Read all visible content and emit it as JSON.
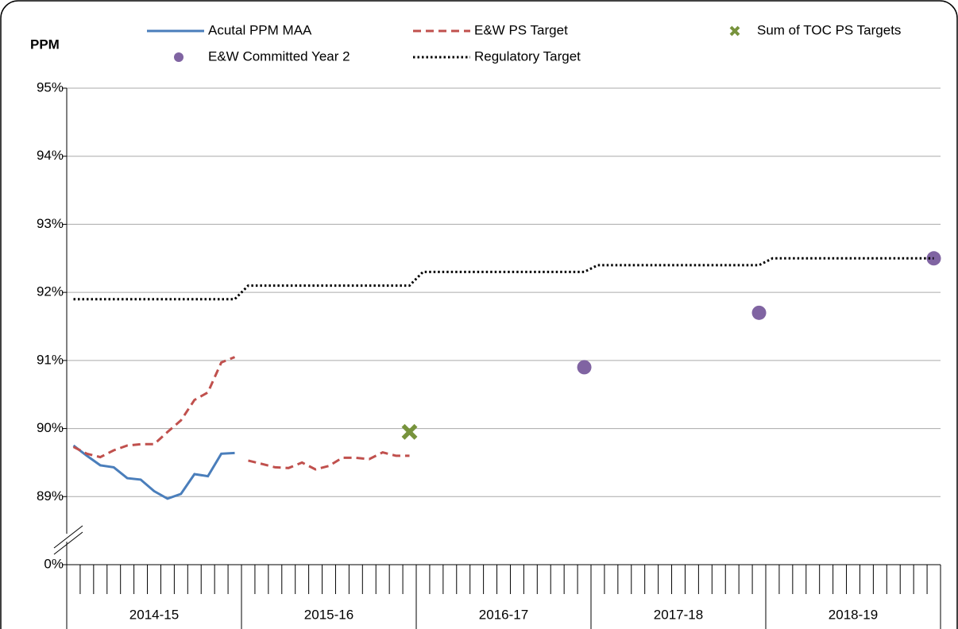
{
  "chart_data": {
    "type": "line",
    "y_label": "PPM",
    "categories": [
      null,
      null,
      null,
      null,
      null,
      null,
      null,
      null,
      null,
      null,
      null,
      null,
      null,
      null,
      null,
      null,
      null,
      null,
      null,
      null,
      null,
      null,
      null,
      null,
      null,
      null,
      null,
      null,
      null,
      null,
      null,
      null,
      null,
      null,
      null,
      null,
      null,
      null,
      null,
      null,
      null,
      null,
      null,
      null,
      null,
      null,
      null,
      null,
      null,
      null,
      null,
      null,
      null,
      null,
      null,
      null,
      null,
      null,
      null,
      null,
      null,
      null,
      null,
      null,
      null
    ],
    "x_groups": [
      "2014-15",
      "2015-16",
      "2016-17",
      "2017-18",
      "2018-19"
    ],
    "ylim": [
      0,
      95
    ],
    "ybreak": [
      0,
      88
    ],
    "yticks": [
      {
        "value": 0,
        "label": "0%"
      },
      {
        "value": 89,
        "label": "89%"
      },
      {
        "value": 90,
        "label": "90%"
      },
      {
        "value": 91,
        "label": "91%"
      },
      {
        "value": 92,
        "label": "92%"
      },
      {
        "value": 93,
        "label": "93%"
      },
      {
        "value": 94,
        "label": "94%"
      },
      {
        "value": 95,
        "label": "95%"
      }
    ],
    "grid": true,
    "series": [
      {
        "name": "Acutal PPM MAA",
        "color": "#4a7ebb",
        "style": "solid",
        "values": [
          89.75,
          89.6,
          89.46,
          89.43,
          89.27,
          89.25,
          89.08,
          88.97,
          89.04,
          89.33,
          89.3,
          89.63,
          89.64,
          null,
          null,
          null,
          null,
          null,
          null,
          null,
          null,
          null,
          null,
          null,
          null,
          null,
          null,
          null,
          null,
          null,
          null,
          null,
          null,
          null,
          null,
          null,
          null,
          null,
          null,
          null,
          null,
          null,
          null,
          null,
          null,
          null,
          null,
          null,
          null,
          null,
          null,
          null,
          null,
          null,
          null,
          null,
          null,
          null,
          null,
          null,
          null,
          null,
          null,
          null,
          null
        ]
      },
      {
        "name": "E&W PS Target",
        "color": "#c0504d",
        "style": "dashed",
        "split_by_group": true,
        "values": [
          89.73,
          89.63,
          89.58,
          89.68,
          89.75,
          89.77,
          89.77,
          89.95,
          90.12,
          90.42,
          90.53,
          90.97,
          91.05,
          89.53,
          89.48,
          89.43,
          89.42,
          89.5,
          89.4,
          89.45,
          89.57,
          89.57,
          89.55,
          89.65,
          89.6,
          89.6,
          null,
          null,
          null,
          null,
          null,
          null,
          null,
          null,
          null,
          null,
          null,
          null,
          null,
          null,
          null,
          null,
          null,
          null,
          null,
          null,
          null,
          null,
          null,
          null,
          null,
          null,
          null,
          null,
          null,
          null,
          null,
          null,
          null,
          null,
          null,
          null,
          null,
          null,
          null
        ]
      },
      {
        "name": "Sum of TOC PS Targets",
        "color": "#77933c",
        "style": "marker",
        "marker": "x",
        "values": [
          null,
          null,
          null,
          null,
          null,
          null,
          null,
          null,
          null,
          null,
          null,
          null,
          null,
          null,
          null,
          null,
          null,
          null,
          null,
          null,
          null,
          null,
          null,
          null,
          null,
          89.95,
          null,
          null,
          null,
          null,
          null,
          null,
          null,
          null,
          null,
          null,
          null,
          null,
          null,
          null,
          null,
          null,
          null,
          null,
          null,
          null,
          null,
          null,
          null,
          null,
          null,
          null,
          null,
          null,
          null,
          null,
          null,
          null,
          null,
          null,
          null,
          null,
          null,
          null,
          null
        ]
      },
      {
        "name": "E&W Committed Year 2",
        "color": "#8064a2",
        "style": "marker",
        "marker": "circle",
        "values": [
          null,
          null,
          null,
          null,
          null,
          null,
          null,
          null,
          null,
          null,
          null,
          null,
          null,
          null,
          null,
          null,
          null,
          null,
          null,
          null,
          null,
          null,
          null,
          null,
          null,
          null,
          null,
          null,
          null,
          null,
          null,
          null,
          null,
          null,
          null,
          null,
          null,
          null,
          90.9,
          null,
          null,
          null,
          null,
          null,
          null,
          null,
          null,
          null,
          null,
          null,
          null,
          91.7,
          null,
          null,
          null,
          null,
          null,
          null,
          null,
          null,
          null,
          null,
          null,
          null,
          92.5
        ]
      },
      {
        "name": "Regulatory Target",
        "color": "#000000",
        "style": "dotted",
        "values": [
          91.9,
          91.9,
          91.9,
          91.9,
          91.9,
          91.9,
          91.9,
          91.9,
          91.9,
          91.9,
          91.9,
          91.9,
          91.9,
          92.1,
          92.1,
          92.1,
          92.1,
          92.1,
          92.1,
          92.1,
          92.1,
          92.1,
          92.1,
          92.1,
          92.1,
          92.1,
          92.3,
          92.3,
          92.3,
          92.3,
          92.3,
          92.3,
          92.3,
          92.3,
          92.3,
          92.3,
          92.3,
          92.3,
          92.3,
          92.4,
          92.4,
          92.4,
          92.4,
          92.4,
          92.4,
          92.4,
          92.4,
          92.4,
          92.4,
          92.4,
          92.4,
          92.4,
          92.5,
          92.5,
          92.5,
          92.5,
          92.5,
          92.5,
          92.5,
          92.5,
          92.5,
          92.5,
          92.5,
          92.5,
          92.5
        ]
      }
    ]
  }
}
